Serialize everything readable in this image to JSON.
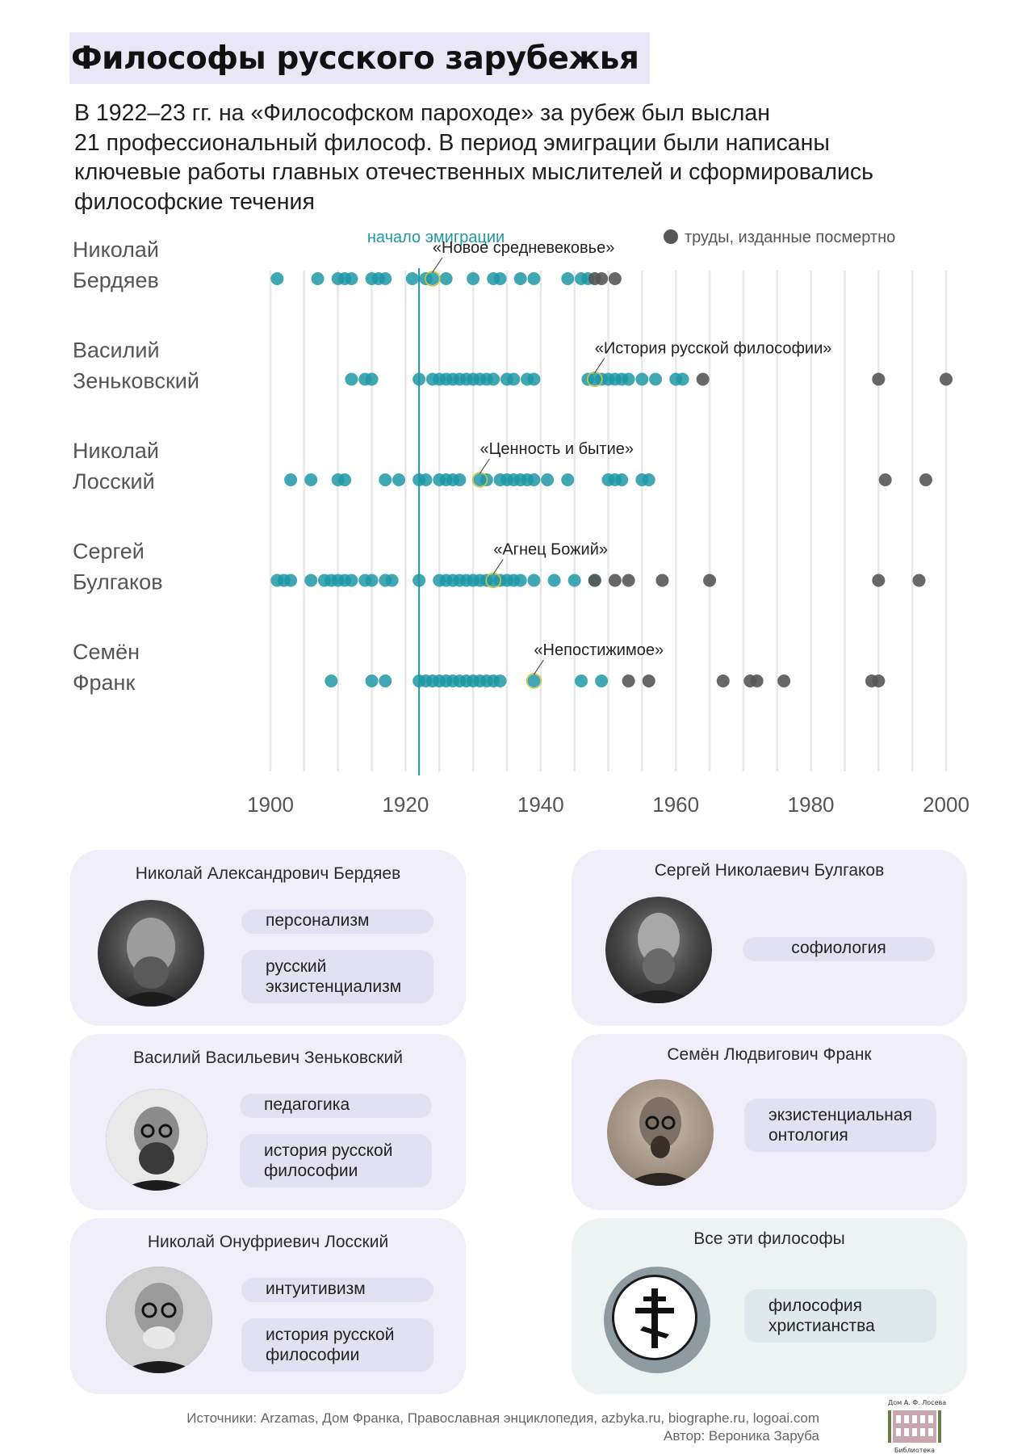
{
  "title": "Философы русского зарубежья",
  "intro": [
    "В 1922–23 гг. на «Философском пароходе» за рубеж был выслан",
    "21 профессиональный философ. В период эмиграции были написаны",
    "ключевые работы главных отечественных мыслителей и сформировались",
    "философские течения"
  ],
  "chart_data": {
    "type": "scatter",
    "emigration_label": "начало эмиграции",
    "emigration_year": 1922,
    "legend_posthumous": "труды, изданные посмертно",
    "x_ticks": [
      "1900",
      "1920",
      "1940",
      "1960",
      "1980",
      "2000"
    ],
    "xlim": [
      1900,
      2000
    ],
    "colors": {
      "work": "#1e98a6",
      "posthumous": "#575757",
      "line": "#1e98a6",
      "grid": "#e6e6e6"
    },
    "rows": [
      {
        "name_line1": "Николай",
        "name_line2": "Бердяев",
        "works": [
          1901,
          1907,
          1910,
          1911,
          1912,
          1915,
          1916,
          1917,
          1921,
          1923,
          1924,
          1926,
          1930,
          1933,
          1934,
          1937,
          1939,
          1944,
          1946,
          1947
        ],
        "posthumous": [
          1948,
          1949,
          1951
        ],
        "highlight": {
          "year": 1924,
          "label": "«Новое средневековье»"
        }
      },
      {
        "name_line1": "Василий",
        "name_line2": "Зеньковский",
        "works": [
          1912,
          1914,
          1915,
          1922,
          1924,
          1925,
          1926,
          1927,
          1928,
          1929,
          1930,
          1931,
          1932,
          1933,
          1935,
          1936,
          1938,
          1939,
          1947,
          1948,
          1949,
          1950,
          1951,
          1952,
          1953,
          1955,
          1957,
          1960,
          1961
        ],
        "posthumous": [
          1964,
          1990,
          2000
        ],
        "highlight": {
          "year": 1948,
          "label": "«История русской философии»"
        }
      },
      {
        "name_line1": "Николай",
        "name_line2": "Лосский",
        "works": [
          1903,
          1906,
          1910,
          1911,
          1917,
          1919,
          1922,
          1923,
          1925,
          1926,
          1927,
          1928,
          1931,
          1932,
          1934,
          1935,
          1936,
          1937,
          1938,
          1939,
          1941,
          1944,
          1950,
          1951,
          1952,
          1955,
          1956
        ],
        "posthumous": [
          1991,
          1997
        ],
        "highlight": {
          "year": 1931,
          "label": "«Ценность и бытие»"
        }
      },
      {
        "name_line1": "Сергей",
        "name_line2": "Булгаков",
        "works": [
          1901,
          1902,
          1903,
          1906,
          1908,
          1909,
          1910,
          1911,
          1912,
          1914,
          1915,
          1917,
          1918,
          1922,
          1925,
          1926,
          1927,
          1928,
          1929,
          1930,
          1931,
          1932,
          1933,
          1934,
          1935,
          1936,
          1937,
          1939,
          1942,
          1945,
          1948
        ],
        "posthumous": [
          1948,
          1951,
          1953,
          1958,
          1965,
          1990,
          1996
        ],
        "highlight": {
          "year": 1933,
          "label": "«Агнец Божий»"
        }
      },
      {
        "name_line1": "Семён",
        "name_line2": "Франк",
        "works": [
          1909,
          1915,
          1917,
          1922,
          1923,
          1924,
          1925,
          1926,
          1927,
          1928,
          1929,
          1930,
          1931,
          1932,
          1933,
          1934,
          1939,
          1946,
          1949
        ],
        "posthumous": [
          1953,
          1956,
          1967,
          1971,
          1972,
          1976,
          1989,
          1990
        ],
        "highlight": {
          "year": 1939,
          "label": "«Непостижимое»"
        }
      }
    ]
  },
  "cards": [
    {
      "name": "Николай Александрович Бердяев",
      "photo_icon": "portrait-berdyaev",
      "tags": [
        "персонализм",
        "русский экзистенциализм"
      ]
    },
    {
      "name": "Сергей Николаевич Булгаков",
      "photo_icon": "portrait-bulgakov",
      "tags": [
        "софиология"
      ]
    },
    {
      "name": "Василий Васильевич Зеньковский",
      "photo_icon": "portrait-zenkovsky",
      "tags": [
        "педагогика",
        "история русской философии"
      ]
    },
    {
      "name": "Семён Людвигович Франк",
      "photo_icon": "portrait-frank",
      "tags": [
        "экзистенциальная онтология"
      ]
    },
    {
      "name": "Николай Онуфриевич Лосский",
      "photo_icon": "portrait-lossky",
      "tags": [
        "интуитивизм",
        "история русской философии"
      ]
    },
    {
      "name": "Все эти философы",
      "photo_icon": "orthodox-cross-icon",
      "tags": [
        "философия христианства"
      ]
    }
  ],
  "sources": "Источники: Arzamas, Дом Франка, Православная энциклопедия, azbyka.ru, biographe.ru, logoai.com",
  "author": "Автор: Вероника Заруба",
  "logo": {
    "top": "Дом А. Ф. Лосева",
    "bottom": "Библиотека",
    "icon": "library-building-icon"
  }
}
